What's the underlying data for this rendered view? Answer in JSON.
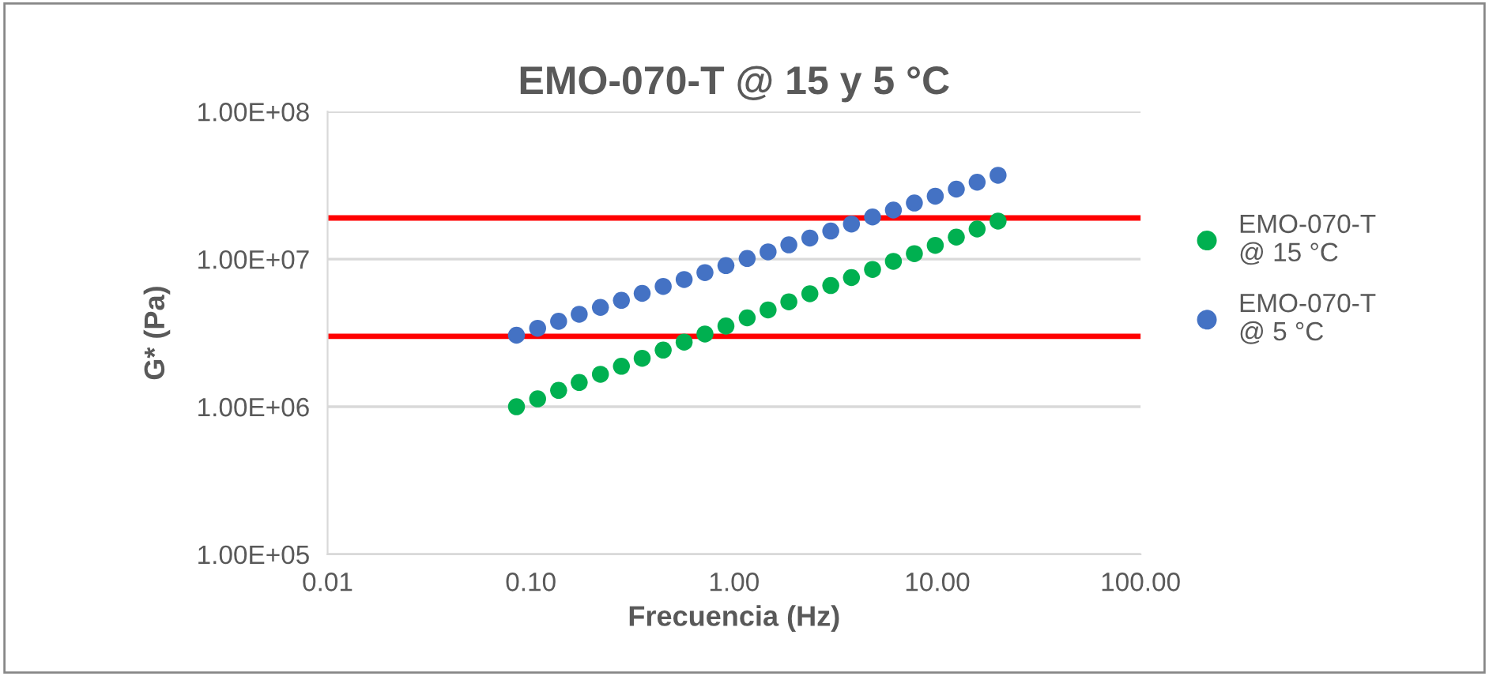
{
  "chart_data": {
    "type": "scatter",
    "title": "EMO-070-T @ 15 y 5 °C",
    "xlabel": "Frecuencia (Hz)",
    "ylabel": "G* (Pa)",
    "log": "xy",
    "grid": "y",
    "legend": "right",
    "marker": "circle",
    "xlim": [
      0.01,
      100
    ],
    "xticks": [
      {
        "value": 0.01,
        "label": "0.01"
      },
      {
        "value": 0.1,
        "label": "0.10"
      },
      {
        "value": 1,
        "label": "1.00"
      },
      {
        "value": 10,
        "label": "10.00"
      },
      {
        "value": 100,
        "label": "100.00"
      }
    ],
    "ylim": [
      100000,
      100000000
    ],
    "yticks": [
      {
        "value": 100000,
        "label": "1.00E+05"
      },
      {
        "value": 1000000,
        "label": "1.00E+06"
      },
      {
        "value": 10000000,
        "label": "1.00E+07"
      },
      {
        "value": 100000000,
        "label": "1.00E+08"
      }
    ],
    "x": [
      0.085,
      0.108,
      0.137,
      0.173,
      0.22,
      0.279,
      0.353,
      0.448,
      0.568,
      0.719,
      0.912,
      1.16,
      1.47,
      1.86,
      2.36,
      2.99,
      3.78,
      4.8,
      6.08,
      7.71,
      9.77,
      12.4,
      15.7,
      19.9
    ],
    "series": [
      {
        "name": "EMO-070-T @ 15 °C",
        "color": "#00b050",
        "values": [
          1000000.0,
          1130000.0,
          1290000.0,
          1460000.0,
          1660000.0,
          1880000.0,
          2130000.0,
          2420000.0,
          2740000.0,
          3110000.0,
          3520000.0,
          4000000.0,
          4530000.0,
          5140000.0,
          5830000.0,
          6620000.0,
          7500000.0,
          8510000.0,
          9660000.0,
          10900000.0,
          12400000.0,
          14100000.0,
          16000000.0,
          18100000.0
        ]
      },
      {
        "name": "EMO-070-T @ 5 °C",
        "color": "#4472c4",
        "values": [
          3050000.0,
          3400000.0,
          3790000.0,
          4230000.0,
          4710000.0,
          5260000.0,
          5860000.0,
          6530000.0,
          7280000.0,
          8110000.0,
          9040000.0,
          10100000.0,
          11200000.0,
          12500000.0,
          13900000.0,
          15500000.0,
          17300000.0,
          19300000.0,
          21500000.0,
          24000000.0,
          26700000.0,
          29800000.0,
          33200000.0,
          37000000.0
        ]
      }
    ],
    "ref_lines": [
      {
        "axis": "y",
        "value": 19000000,
        "color": "#ff0000"
      },
      {
        "axis": "y",
        "value": 3000000,
        "color": "#ff0000"
      }
    ]
  }
}
